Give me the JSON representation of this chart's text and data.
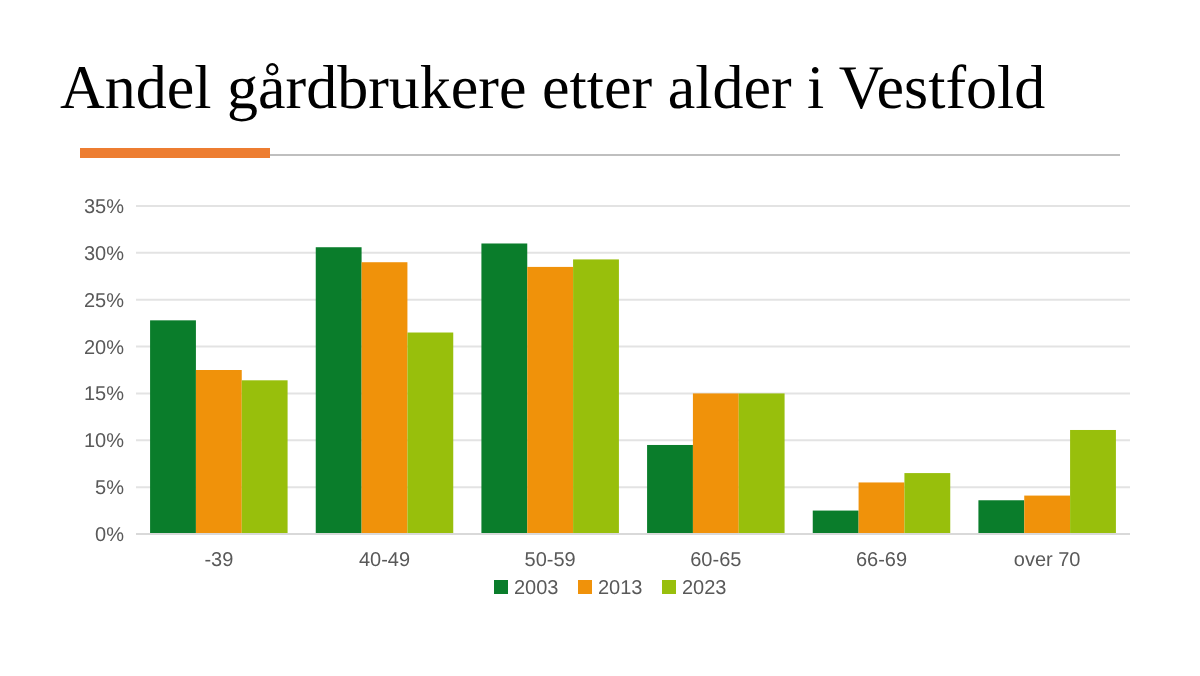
{
  "chart_data": {
    "type": "bar",
    "title": "Andel gårdbrukere etter alder i Vestfold",
    "categories": [
      "-39",
      "40-49",
      "50-59",
      "60-65",
      "66-69",
      "over 70"
    ],
    "series": [
      {
        "name": "2003",
        "color": "#0a7d2b",
        "values": [
          22.8,
          30.6,
          31.0,
          9.5,
          2.5,
          3.6
        ]
      },
      {
        "name": "2013",
        "color": "#f0920a",
        "values": [
          17.5,
          29.0,
          28.5,
          15.0,
          5.5,
          4.1
        ]
      },
      {
        "name": "2023",
        "color": "#98bf0c",
        "values": [
          16.4,
          21.5,
          29.3,
          15.0,
          6.5,
          11.1
        ]
      }
    ],
    "ylim": [
      0,
      35
    ],
    "yticks": [
      {
        "value": 0,
        "label": "0%"
      },
      {
        "value": 5,
        "label": "5%"
      },
      {
        "value": 10,
        "label": "10%"
      },
      {
        "value": 15,
        "label": "15%"
      },
      {
        "value": 20,
        "label": "20%"
      },
      {
        "value": 25,
        "label": "25%"
      },
      {
        "value": 30,
        "label": "30%"
      },
      {
        "value": 35,
        "label": "35%"
      }
    ],
    "grid": "y",
    "legend": "bottom"
  }
}
